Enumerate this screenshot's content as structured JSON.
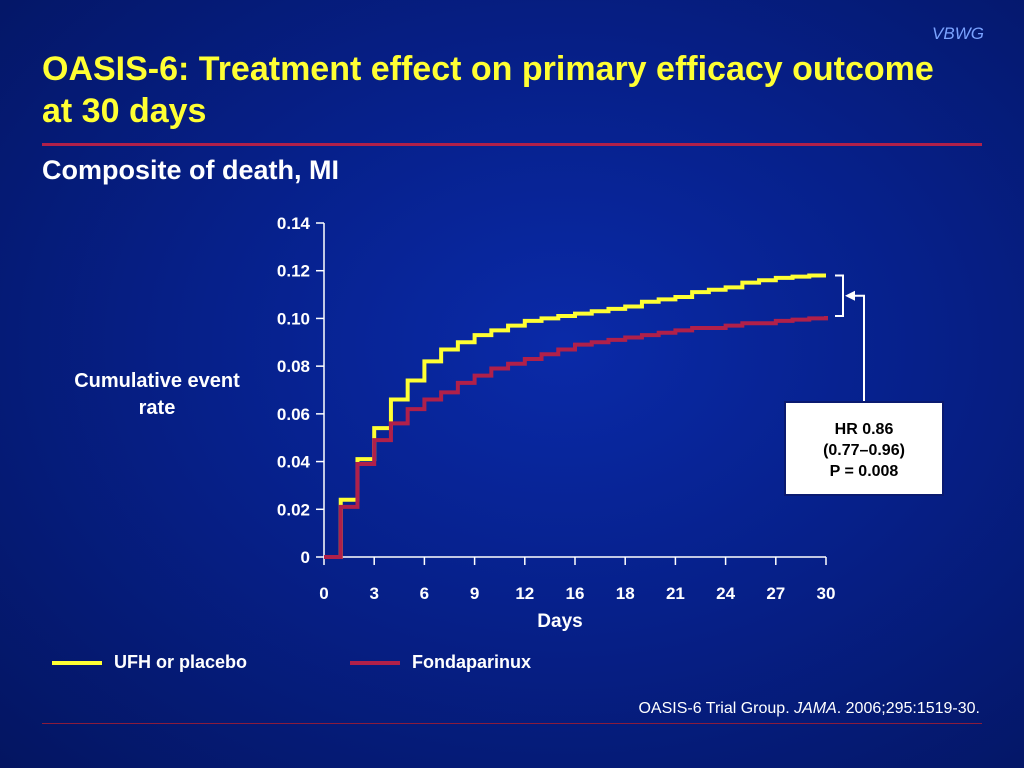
{
  "brand": "VBWG",
  "slide": {
    "title": "OASIS-6: Treatment effect on primary efficacy outcome at 30 days",
    "subtitle": "Composite of death, MI"
  },
  "colors": {
    "ufh": "#ffff33",
    "fondaparinux": "#b0204a",
    "title": "#ffff33"
  },
  "hr_box": {
    "line1": "HR 0.86",
    "line2": "(0.77–0.96)",
    "line3": "P = 0.008"
  },
  "citation": {
    "prefix": "OASIS-6 Trial Group. ",
    "journal": "JAMA",
    "suffix": ". 2006;295:1519-30."
  },
  "chart_data": {
    "type": "line",
    "step": true,
    "xlabel": "Days",
    "ylabel": "Cumulative event rate",
    "xlim": [
      0,
      30
    ],
    "ylim": [
      0,
      0.14
    ],
    "x_ticks": [
      "0",
      "3",
      "6",
      "9",
      "12",
      "16",
      "18",
      "21",
      "24",
      "27",
      "30"
    ],
    "y_ticks": [
      "0",
      "0.02",
      "0.04",
      "0.06",
      "0.08",
      "0.10",
      "0.12",
      "0.14"
    ],
    "legend_position": "bottom",
    "series": [
      {
        "name": "UFH or placebo",
        "color": "#ffff33",
        "x": [
          0,
          1,
          2,
          3,
          4,
          5,
          6,
          7,
          8,
          9,
          10,
          11,
          12,
          13,
          14,
          15,
          16,
          17,
          18,
          19,
          20,
          21,
          22,
          23,
          24,
          25,
          26,
          27,
          28,
          29,
          30
        ],
        "y": [
          0,
          0.024,
          0.041,
          0.054,
          0.066,
          0.074,
          0.082,
          0.087,
          0.09,
          0.093,
          0.095,
          0.097,
          0.099,
          0.1,
          0.101,
          0.102,
          0.103,
          0.104,
          0.105,
          0.107,
          0.108,
          0.109,
          0.111,
          0.112,
          0.113,
          0.115,
          0.116,
          0.117,
          0.1175,
          0.118,
          0.118
        ]
      },
      {
        "name": "Fondaparinux",
        "color": "#b0204a",
        "x": [
          0,
          1,
          2,
          3,
          4,
          5,
          6,
          7,
          8,
          9,
          10,
          11,
          12,
          13,
          14,
          15,
          16,
          17,
          18,
          19,
          20,
          21,
          22,
          23,
          24,
          25,
          26,
          27,
          28,
          29,
          30
        ],
        "y": [
          0,
          0.021,
          0.039,
          0.049,
          0.056,
          0.062,
          0.066,
          0.069,
          0.073,
          0.076,
          0.079,
          0.081,
          0.083,
          0.085,
          0.087,
          0.089,
          0.09,
          0.091,
          0.092,
          0.093,
          0.094,
          0.095,
          0.096,
          0.096,
          0.097,
          0.098,
          0.098,
          0.099,
          0.0995,
          0.1,
          0.101
        ]
      }
    ],
    "annotation": "HR 0.86 (0.77–0.96) P = 0.008"
  }
}
